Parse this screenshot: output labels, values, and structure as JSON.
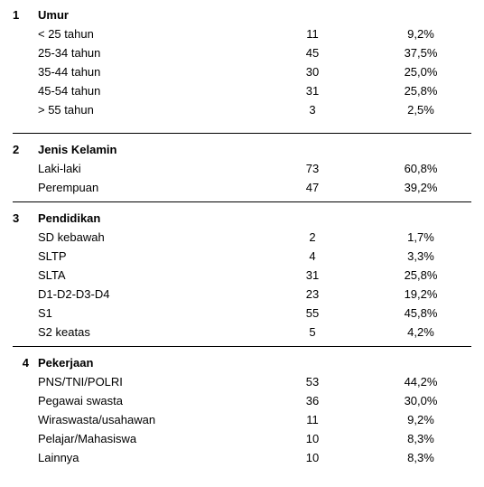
{
  "sections": [
    {
      "num": "1",
      "title": "Umur",
      "rows": [
        {
          "label": "< 25 tahun",
          "value": "11",
          "pct": "9,2%"
        },
        {
          "label": "25-34 tahun",
          "value": "45",
          "pct": "37,5%"
        },
        {
          "label": "35-44 tahun",
          "value": "30",
          "pct": "25,0%"
        },
        {
          "label": "45-54 tahun",
          "value": "31",
          "pct": "25,8%"
        },
        {
          "label": "> 55 tahun",
          "value": "3",
          "pct": "2,5%"
        }
      ]
    },
    {
      "num": "2",
      "title": "Jenis Kelamin",
      "rows": [
        {
          "label": "Laki-laki",
          "value": "73",
          "pct": "60,8%"
        },
        {
          "label": "Perempuan",
          "value": "47",
          "pct": "39,2%"
        }
      ]
    },
    {
      "num": "3",
      "title": "Pendidikan",
      "rows": [
        {
          "label": "SD kebawah",
          "value": "2",
          "pct": "1,7%"
        },
        {
          "label": "SLTP",
          "value": "4",
          "pct": "3,3%"
        },
        {
          "label": "SLTA",
          "value": "31",
          "pct": "25,8%"
        },
        {
          "label": "D1-D2-D3-D4",
          "value": "23",
          "pct": "19,2%"
        },
        {
          "label": "S1",
          "value": "55",
          "pct": "45,8%"
        },
        {
          "label": "S2 keatas",
          "value": "5",
          "pct": "4,2%"
        }
      ]
    },
    {
      "num": "4",
      "title": "Pekerjaan",
      "rows": [
        {
          "label": "PNS/TNI/POLRI",
          "value": "53",
          "pct": "44,2%"
        },
        {
          "label": "Pegawai swasta",
          "value": "36",
          "pct": "30,0%"
        },
        {
          "label": "Wiraswasta/usahawan",
          "value": "11",
          "pct": "9,2%"
        },
        {
          "label": "Pelajar/Mahasiswa",
          "value": "10",
          "pct": "8,3%"
        },
        {
          "label": "Lainnya",
          "value": "10",
          "pct": "8,3%"
        }
      ]
    }
  ]
}
